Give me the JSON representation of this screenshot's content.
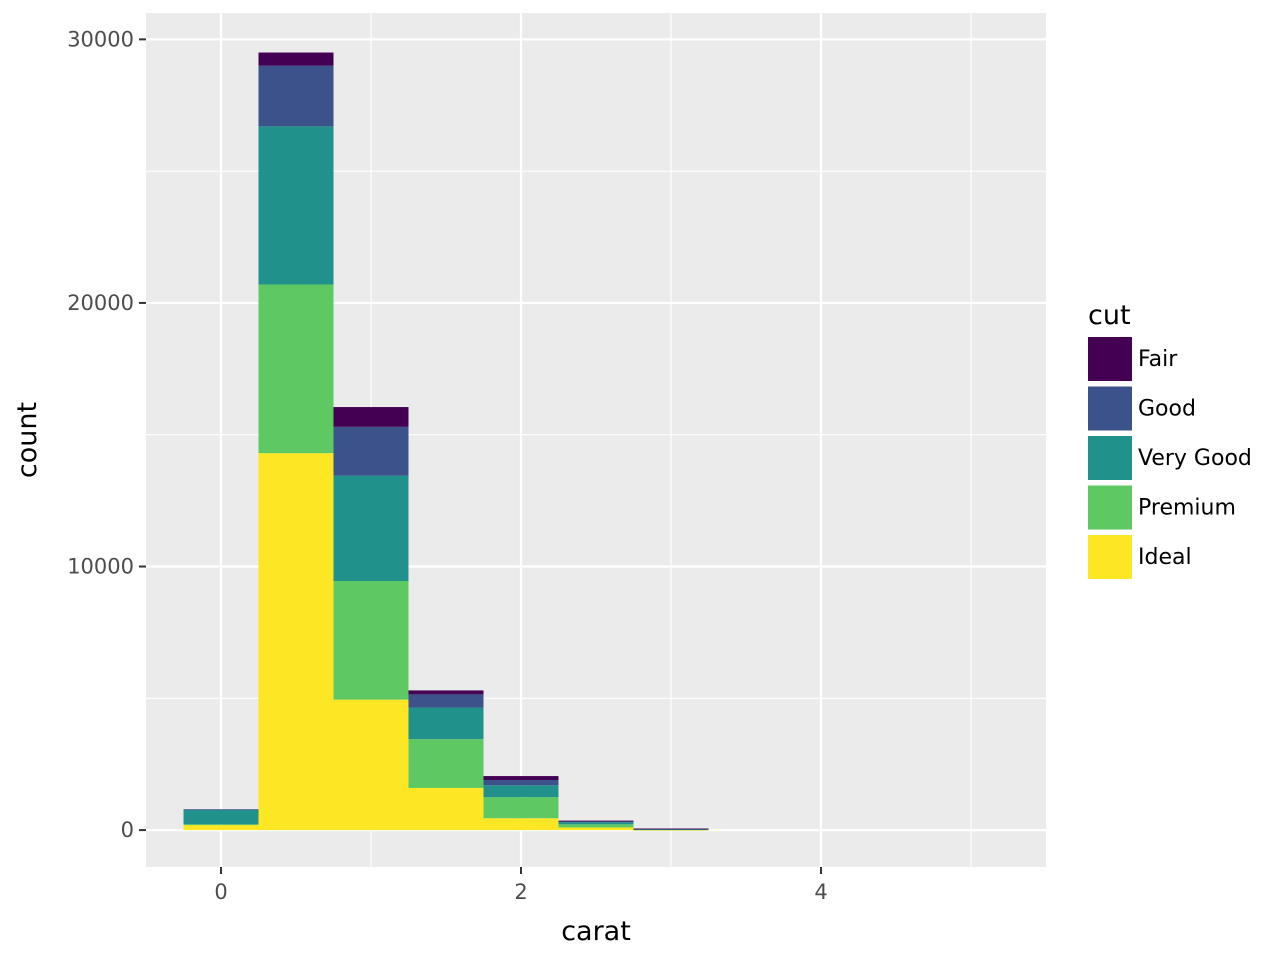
{
  "chart_data": {
    "type": "bar",
    "stacked": true,
    "x_label": "carat",
    "y_label": "count",
    "x_ticks": [
      0,
      2,
      4
    ],
    "y_ticks": [
      0,
      10000,
      20000,
      30000
    ],
    "xlim": [
      -0.5,
      5.5
    ],
    "ylim": [
      -1400,
      31000
    ],
    "grid": true,
    "legend_title": "cut",
    "legend_position": "right",
    "bins": [
      {
        "start": -0.25,
        "end": 0.25
      },
      {
        "start": 0.25,
        "end": 0.75
      },
      {
        "start": 0.75,
        "end": 1.25
      },
      {
        "start": 1.25,
        "end": 1.75
      },
      {
        "start": 1.75,
        "end": 2.25
      },
      {
        "start": 2.25,
        "end": 2.75
      },
      {
        "start": 2.75,
        "end": 3.25
      },
      {
        "start": 3.25,
        "end": 3.75
      },
      {
        "start": 3.75,
        "end": 4.25
      },
      {
        "start": 4.25,
        "end": 4.75
      },
      {
        "start": 4.75,
        "end": 5.25
      }
    ],
    "series": [
      {
        "name": "Ideal",
        "color": "#FDE725",
        "values": [
          200,
          14300,
          4950,
          1600,
          450,
          100,
          10,
          0,
          0,
          0,
          0
        ]
      },
      {
        "name": "Premium",
        "color": "#5EC962",
        "values": [
          20,
          6400,
          4500,
          1850,
          800,
          120,
          15,
          0,
          0,
          0,
          0
        ]
      },
      {
        "name": "Very Good",
        "color": "#21918C",
        "values": [
          550,
          6000,
          4000,
          1200,
          450,
          80,
          15,
          0,
          0,
          0,
          0
        ]
      },
      {
        "name": "Good",
        "color": "#3B528B",
        "values": [
          20,
          2300,
          1850,
          500,
          200,
          40,
          10,
          0,
          0,
          0,
          0
        ]
      },
      {
        "name": "Fair",
        "color": "#440154",
        "values": [
          0,
          500,
          750,
          150,
          150,
          20,
          10,
          0,
          0,
          0,
          0
        ]
      }
    ],
    "legend_order": [
      "Fair",
      "Good",
      "Very Good",
      "Premium",
      "Ideal"
    ]
  }
}
